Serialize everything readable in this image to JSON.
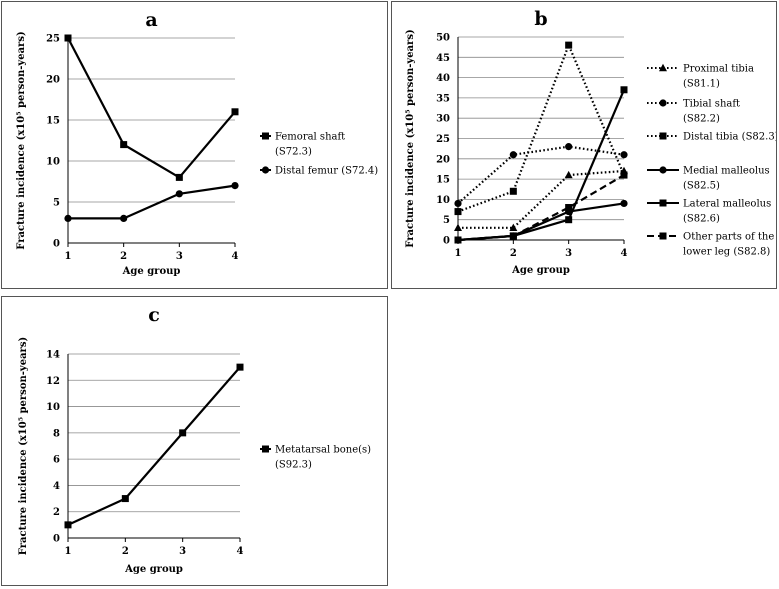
{
  "chart_data": [
    {
      "id": "a",
      "type": "line",
      "title": "a",
      "xlabel": "Age group",
      "ylabel": "Fracture incidence (x10⁵ person-years)",
      "x": [
        1,
        2,
        3,
        4
      ],
      "ylim": [
        0,
        25
      ],
      "yticks": [
        0,
        5,
        10,
        15,
        20,
        25
      ],
      "grid": true,
      "legend_position": "right",
      "series": [
        {
          "name": "Femoral shaft (S72.3)",
          "legend_lines": [
            "Femoral shaft",
            "(S72.3)"
          ],
          "values": [
            25,
            12,
            8,
            16
          ],
          "marker": "square",
          "dash": "solid"
        },
        {
          "name": "Distal femur (S72.4)",
          "legend_lines": [
            "Distal femur (S72.4)"
          ],
          "values": [
            3,
            3,
            6,
            7
          ],
          "marker": "circle",
          "dash": "solid"
        }
      ]
    },
    {
      "id": "b",
      "type": "line",
      "title": "b",
      "xlabel": "Age group",
      "ylabel": "Fracture incidence (x10⁵ person-years)",
      "x": [
        1,
        2,
        3,
        4
      ],
      "ylim": [
        0,
        50
      ],
      "yticks": [
        0,
        5,
        10,
        15,
        20,
        25,
        30,
        35,
        40,
        45,
        50
      ],
      "grid": true,
      "legend_position": "right",
      "series": [
        {
          "name": "Proximal tibia (S81.1)",
          "legend_lines": [
            "Proximal tibia",
            "(S81.1)"
          ],
          "values": [
            3,
            3,
            16,
            17
          ],
          "marker": "triangle",
          "dash": "dotted"
        },
        {
          "name": "Tibial shaft (S82.2)",
          "legend_lines": [
            "Tibial shaft",
            "(S82.2)"
          ],
          "values": [
            9,
            21,
            23,
            21
          ],
          "marker": "circle",
          "dash": "dotted"
        },
        {
          "name": "Distal tibia (S82.3)",
          "legend_lines": [
            "Distal tibia (S82.3)"
          ],
          "values": [
            7,
            12,
            48,
            16
          ],
          "marker": "square",
          "dash": "dotted"
        },
        {
          "name": "Medial malleolus (S82.5)",
          "legend_lines": [
            "Medial malleolus",
            "(S82.5)"
          ],
          "values": [
            0,
            1,
            7,
            9
          ],
          "marker": "circle",
          "dash": "solid"
        },
        {
          "name": "Lateral malleolus (S82.6)",
          "legend_lines": [
            "Lateral malleolus",
            "(S82.6)"
          ],
          "values": [
            0,
            1,
            5,
            37
          ],
          "marker": "square",
          "dash": "solid"
        },
        {
          "name": "Other parts of the lower leg (S82.8)",
          "legend_lines": [
            "Other parts of the",
            "lower leg (S82.8)"
          ],
          "values": [
            0,
            1,
            8,
            16
          ],
          "marker": "square",
          "dash": "dashed"
        }
      ]
    },
    {
      "id": "c",
      "type": "line",
      "title": "c",
      "xlabel": "Age group",
      "ylabel": "Fracture incidence (x10⁵ person-years)",
      "x": [
        1,
        2,
        3,
        4
      ],
      "ylim": [
        0,
        14
      ],
      "yticks": [
        0,
        2,
        4,
        6,
        8,
        10,
        12,
        14
      ],
      "grid": true,
      "legend_position": "right",
      "series": [
        {
          "name": "Metatarsal bone(s) (S92.3)",
          "legend_lines": [
            "Metatarsal bone(s)",
            "(S92.3)"
          ],
          "values": [
            1,
            3,
            8,
            13
          ],
          "marker": "square",
          "dash": "solid"
        }
      ]
    }
  ]
}
